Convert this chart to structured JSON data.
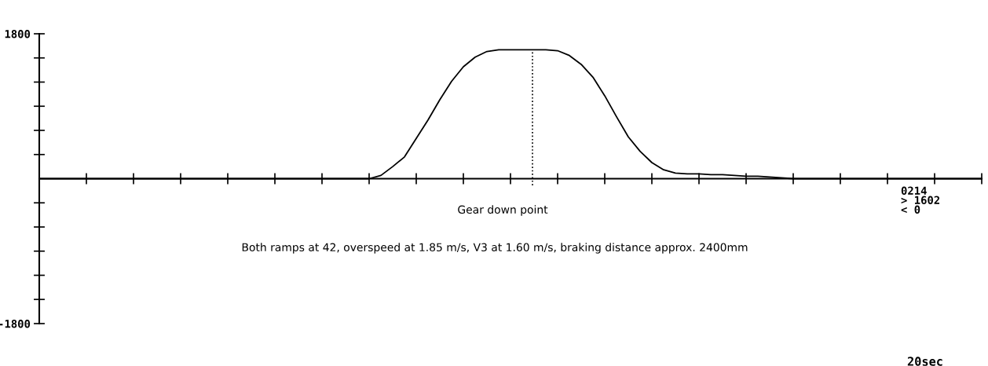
{
  "chart_data": {
    "type": "line",
    "xlabel": "20sec",
    "color": "#000000",
    "line_style": "solid",
    "marker": "none",
    "categories": [
      null,
      null,
      null,
      null,
      null,
      null,
      null,
      null,
      null,
      null,
      null,
      null,
      null,
      null,
      null,
      null,
      null,
      null,
      null,
      null,
      null,
      null,
      null,
      null,
      null,
      null,
      null,
      null,
      null,
      null,
      null,
      null,
      null,
      null,
      null,
      null,
      null,
      null,
      null,
      null,
      null,
      null,
      null,
      null,
      null,
      null,
      null,
      null,
      null,
      null,
      null,
      null,
      null,
      null,
      null,
      null,
      null,
      null,
      null,
      null,
      null,
      null,
      null,
      null,
      null,
      null,
      null,
      null,
      null,
      null,
      null,
      null,
      null,
      null,
      null,
      null,
      null,
      null,
      null,
      null,
      null
    ],
    "values": [
      0,
      0,
      0,
      0,
      0,
      0,
      0,
      0,
      0,
      0,
      0,
      0,
      0,
      0,
      0,
      0,
      0,
      0,
      0,
      0,
      0,
      0,
      0,
      0,
      0,
      0,
      0,
      0,
      0,
      40,
      150,
      270,
      500,
      730,
      980,
      1210,
      1390,
      1510,
      1580,
      1602,
      1602,
      1602,
      1602,
      1602,
      1590,
      1530,
      1420,
      1260,
      1030,
      770,
      520,
      340,
      200,
      110,
      70,
      60,
      60,
      50,
      50,
      40,
      30,
      30,
      20,
      10,
      0,
      0,
      0,
      0,
      0,
      0,
      0,
      0,
      0,
      0,
      0,
      0,
      0,
      0,
      0,
      0,
      0
    ],
    "ylim": [
      -1800,
      1800
    ],
    "yticks": [
      {
        "value": -1800,
        "label": "-1800"
      },
      {
        "value": -1500,
        "label": null
      },
      {
        "value": -1200,
        "label": null
      },
      {
        "value": -900,
        "label": null
      },
      {
        "value": -600,
        "label": null
      },
      {
        "value": -300,
        "label": null
      },
      {
        "value": 300,
        "label": null
      },
      {
        "value": 600,
        "label": null
      },
      {
        "value": 900,
        "label": null
      },
      {
        "value": 1200,
        "label": null
      },
      {
        "value": 1500,
        "label": null
      },
      {
        "value": 1800,
        "label": "1800"
      }
    ],
    "annotations": [
      "Gear down point",
      "Both ramps at 42, overspeed at 1.85 m/s, V3 at 1.60 m/s, braking distance approx. 2400mm",
      "0214",
      "> 1602",
      "< 0"
    ]
  }
}
